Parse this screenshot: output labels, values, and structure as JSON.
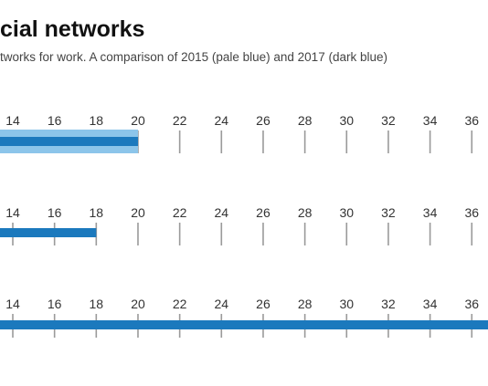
{
  "title_visible": "cial networks",
  "subtitle_visible": "tworks for work. A comparison of 2015 (pale blue) and 2017 (dark blue)",
  "colors": {
    "pale_blue": "#8cc5ea",
    "dark_blue": "#1b79bd",
    "tick": "#9a9a9a",
    "label": "#333333"
  },
  "chart_data": [
    {
      "type": "bar",
      "orientation": "horizontal",
      "tick_labels": [
        14,
        16,
        18,
        20,
        22,
        24,
        26,
        28,
        30,
        32,
        34,
        36
      ],
      "series": [
        {
          "values": [
            20
          ],
          "color": "#8cc5ea"
        },
        {
          "values": [
            20
          ],
          "color": "#1b79bd"
        }
      ]
    },
    {
      "type": "bar",
      "orientation": "horizontal",
      "tick_labels": [
        14,
        16,
        18,
        20,
        22,
        24,
        26,
        28,
        30,
        32,
        34,
        36
      ],
      "series": [
        {
          "values": [
            18
          ],
          "color": "#1b79bd"
        }
      ]
    },
    {
      "type": "bar",
      "orientation": "horizontal",
      "tick_labels": [
        14,
        16,
        18,
        20,
        22,
        24,
        26,
        28,
        30,
        32,
        34,
        36
      ],
      "series": [
        {
          "values": [
            37
          ],
          "color": "#1b79bd"
        }
      ]
    }
  ]
}
